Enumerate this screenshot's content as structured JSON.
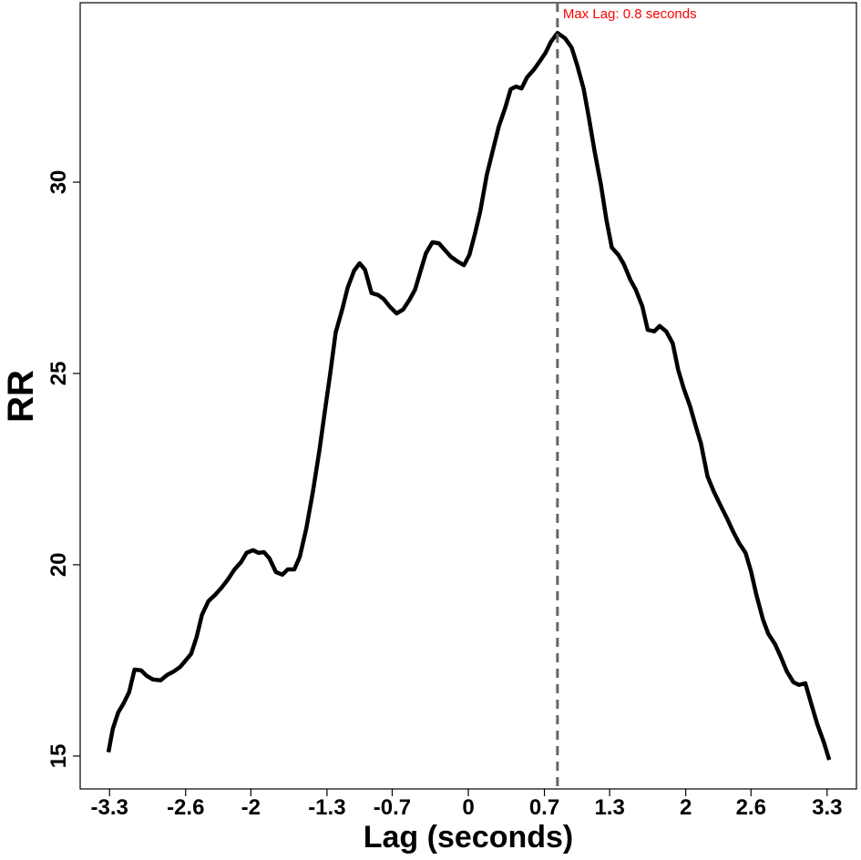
{
  "chart_data": {
    "type": "line",
    "x_label": "Lag (seconds)",
    "y_label": "RR",
    "annotation": "Max Lag: 0.8 seconds",
    "annotation_color": "#ff0000",
    "max_lag": 0.82,
    "max_lag_color": "#666666",
    "color": "#000000",
    "x": [
      -3.31,
      -3.27,
      -3.22,
      -3.17,
      -3.12,
      -3.07,
      -3.01,
      -2.96,
      -2.9,
      -2.83,
      -2.77,
      -2.71,
      -2.65,
      -2.6,
      -2.55,
      -2.5,
      -2.45,
      -2.39,
      -2.33,
      -2.27,
      -2.21,
      -2.15,
      -2.09,
      -2.04,
      -1.98,
      -1.93,
      -1.88,
      -1.83,
      -1.77,
      -1.71,
      -1.66,
      -1.6,
      -1.55,
      -1.49,
      -1.43,
      -1.37,
      -1.32,
      -1.27,
      -1.22,
      -1.16,
      -1.11,
      -1.05,
      -1.0,
      -0.95,
      -0.89,
      -0.83,
      -0.78,
      -0.72,
      -0.66,
      -0.6,
      -0.54,
      -0.49,
      -0.44,
      -0.39,
      -0.33,
      -0.27,
      -0.22,
      -0.16,
      -0.1,
      -0.04,
      0.01,
      0.06,
      0.11,
      0.17,
      0.23,
      0.28,
      0.34,
      0.39,
      0.44,
      0.49,
      0.54,
      0.6,
      0.66,
      0.71,
      0.76,
      0.82,
      0.89,
      0.95,
      1.0,
      1.06,
      1.11,
      1.16,
      1.22,
      1.27,
      1.32,
      1.38,
      1.43,
      1.49,
      1.54,
      1.6,
      1.65,
      1.71,
      1.76,
      1.82,
      1.88,
      1.93,
      1.98,
      2.04,
      2.09,
      2.14,
      2.2,
      2.26,
      2.32,
      2.38,
      2.43,
      2.49,
      2.55,
      2.6,
      2.65,
      2.71,
      2.76,
      2.82,
      2.87,
      2.93,
      2.99,
      3.04,
      3.1,
      3.16,
      3.21,
      3.27,
      3.32
    ],
    "values": [
      15.1,
      15.71,
      16.14,
      16.38,
      16.67,
      17.26,
      17.24,
      17.1,
      17.0,
      16.98,
      17.12,
      17.21,
      17.33,
      17.5,
      17.67,
      18.1,
      18.69,
      19.05,
      19.21,
      19.4,
      19.62,
      19.88,
      20.07,
      20.31,
      20.38,
      20.31,
      20.33,
      20.17,
      19.81,
      19.74,
      19.88,
      19.88,
      20.21,
      20.95,
      21.9,
      22.98,
      24.0,
      25.0,
      26.07,
      26.67,
      27.24,
      27.69,
      27.88,
      27.71,
      27.1,
      27.05,
      26.95,
      26.74,
      26.57,
      26.67,
      26.93,
      27.19,
      27.67,
      28.14,
      28.43,
      28.4,
      28.24,
      28.05,
      27.93,
      27.83,
      28.1,
      28.64,
      29.24,
      30.19,
      30.88,
      31.45,
      31.95,
      32.43,
      32.5,
      32.45,
      32.74,
      32.93,
      33.17,
      33.38,
      33.67,
      33.9,
      33.76,
      33.52,
      33.07,
      32.45,
      31.67,
      30.83,
      29.93,
      29.02,
      28.29,
      28.1,
      27.86,
      27.45,
      27.19,
      26.76,
      26.14,
      26.1,
      26.24,
      26.1,
      25.79,
      25.1,
      24.62,
      24.14,
      23.64,
      23.17,
      22.31,
      21.9,
      21.55,
      21.21,
      20.9,
      20.57,
      20.31,
      19.83,
      19.21,
      18.57,
      18.19,
      17.93,
      17.62,
      17.21,
      16.93,
      16.86,
      16.9,
      16.31,
      15.83,
      15.36,
      14.9
    ],
    "xlim": [
      -3.57,
      3.57
    ],
    "ylim": [
      14.14,
      34.69
    ],
    "xticks": [
      -3.3,
      -2.6,
      -2,
      -1.3,
      -0.7,
      0,
      0.7,
      1.3,
      2,
      2.6,
      3.3
    ],
    "yticks": [
      15,
      20,
      25,
      30
    ]
  }
}
